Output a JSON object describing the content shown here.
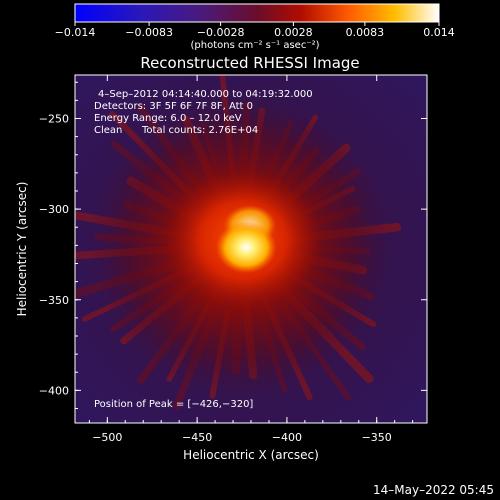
{
  "chart_data": {
    "type": "heatmap",
    "title": "Reconstructed RHESSI Image",
    "xlabel": "Heliocentric X (arcsec)",
    "ylabel": "Heliocentric Y (arcsec)",
    "xlim": [
      -518,
      -322
    ],
    "ylim": [
      -418,
      -226
    ],
    "x_ticks": [
      {
        "value": -500,
        "label": "−500"
      },
      {
        "value": -450,
        "label": "−450"
      },
      {
        "value": -400,
        "label": "−400"
      },
      {
        "value": -350,
        "label": "−350"
      }
    ],
    "y_ticks": [
      {
        "value": -250,
        "label": "−250"
      },
      {
        "value": -300,
        "label": "−300"
      },
      {
        "value": -350,
        "label": "−350"
      },
      {
        "value": -400,
        "label": "−400"
      }
    ],
    "colorbar": {
      "min": -0.014,
      "max": 0.014,
      "ticks": [
        {
          "value": -0.014,
          "label": "−0.014"
        },
        {
          "value": -0.0083,
          "label": "−0.0083"
        },
        {
          "value": -0.0028,
          "label": "−0.0028"
        },
        {
          "value": 0.0028,
          "label": "0.0028"
        },
        {
          "value": 0.0083,
          "label": "0.0083"
        },
        {
          "value": 0.014,
          "label": "0.014"
        }
      ],
      "unit": "(photons cm⁻² s⁻¹ asec⁻²)"
    },
    "annotations": {
      "time_range": "4–Sep–2012 04:14:40.000 to 04:19:32.000",
      "detectors": "Detectors: 3F 5F 6F 7F 8F, Att 0",
      "energy_range": "Energy Range: 6.0 – 12.0 keV",
      "algorithm": "Clean",
      "total_counts": "Total counts: 2.76E+04",
      "peak_position": "Position of Peak = [−426,−320]"
    },
    "peak": {
      "x": -426,
      "y": -320,
      "value": 0.014
    }
  },
  "timestamp": "14–May–2022 05:45",
  "colors": {
    "background": "#000000",
    "axis": "#ffffff",
    "colormap": [
      "#0000ff",
      "#3a16a0",
      "#551b78",
      "#8a0a12",
      "#d01c00",
      "#ff7700",
      "#ffc400",
      "#ffffff"
    ]
  }
}
